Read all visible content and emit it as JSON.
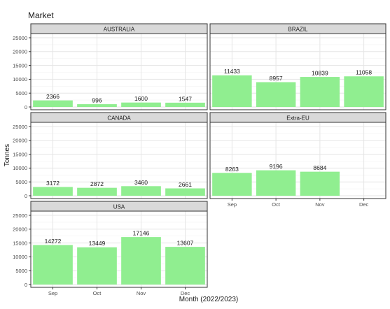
{
  "chart_data": {
    "type": "bar",
    "legend_title": "Market",
    "xlabel": "Month (2022/2023)",
    "ylabel": "Tonnes",
    "categories": [
      "Sep",
      "Oct",
      "Nov",
      "Dec"
    ],
    "ylim": [
      0,
      25000
    ],
    "yticks": [
      0,
      5000,
      10000,
      15000,
      20000,
      25000
    ],
    "bar_color": "#90EE90",
    "strip_color": "#D9D9D9",
    "grid": true,
    "panels": [
      {
        "name": "AUSTRALIA",
        "values": [
          2366,
          996,
          1600,
          1547
        ]
      },
      {
        "name": "BRAZIL",
        "values": [
          11433,
          8957,
          10839,
          11058
        ]
      },
      {
        "name": "CANADA",
        "values": [
          3172,
          2872,
          3460,
          2661
        ]
      },
      {
        "name": "Extra-EU",
        "values": [
          8263,
          9196,
          8684,
          null
        ]
      },
      {
        "name": "USA",
        "values": [
          14272,
          13449,
          17146,
          13607
        ]
      }
    ]
  }
}
